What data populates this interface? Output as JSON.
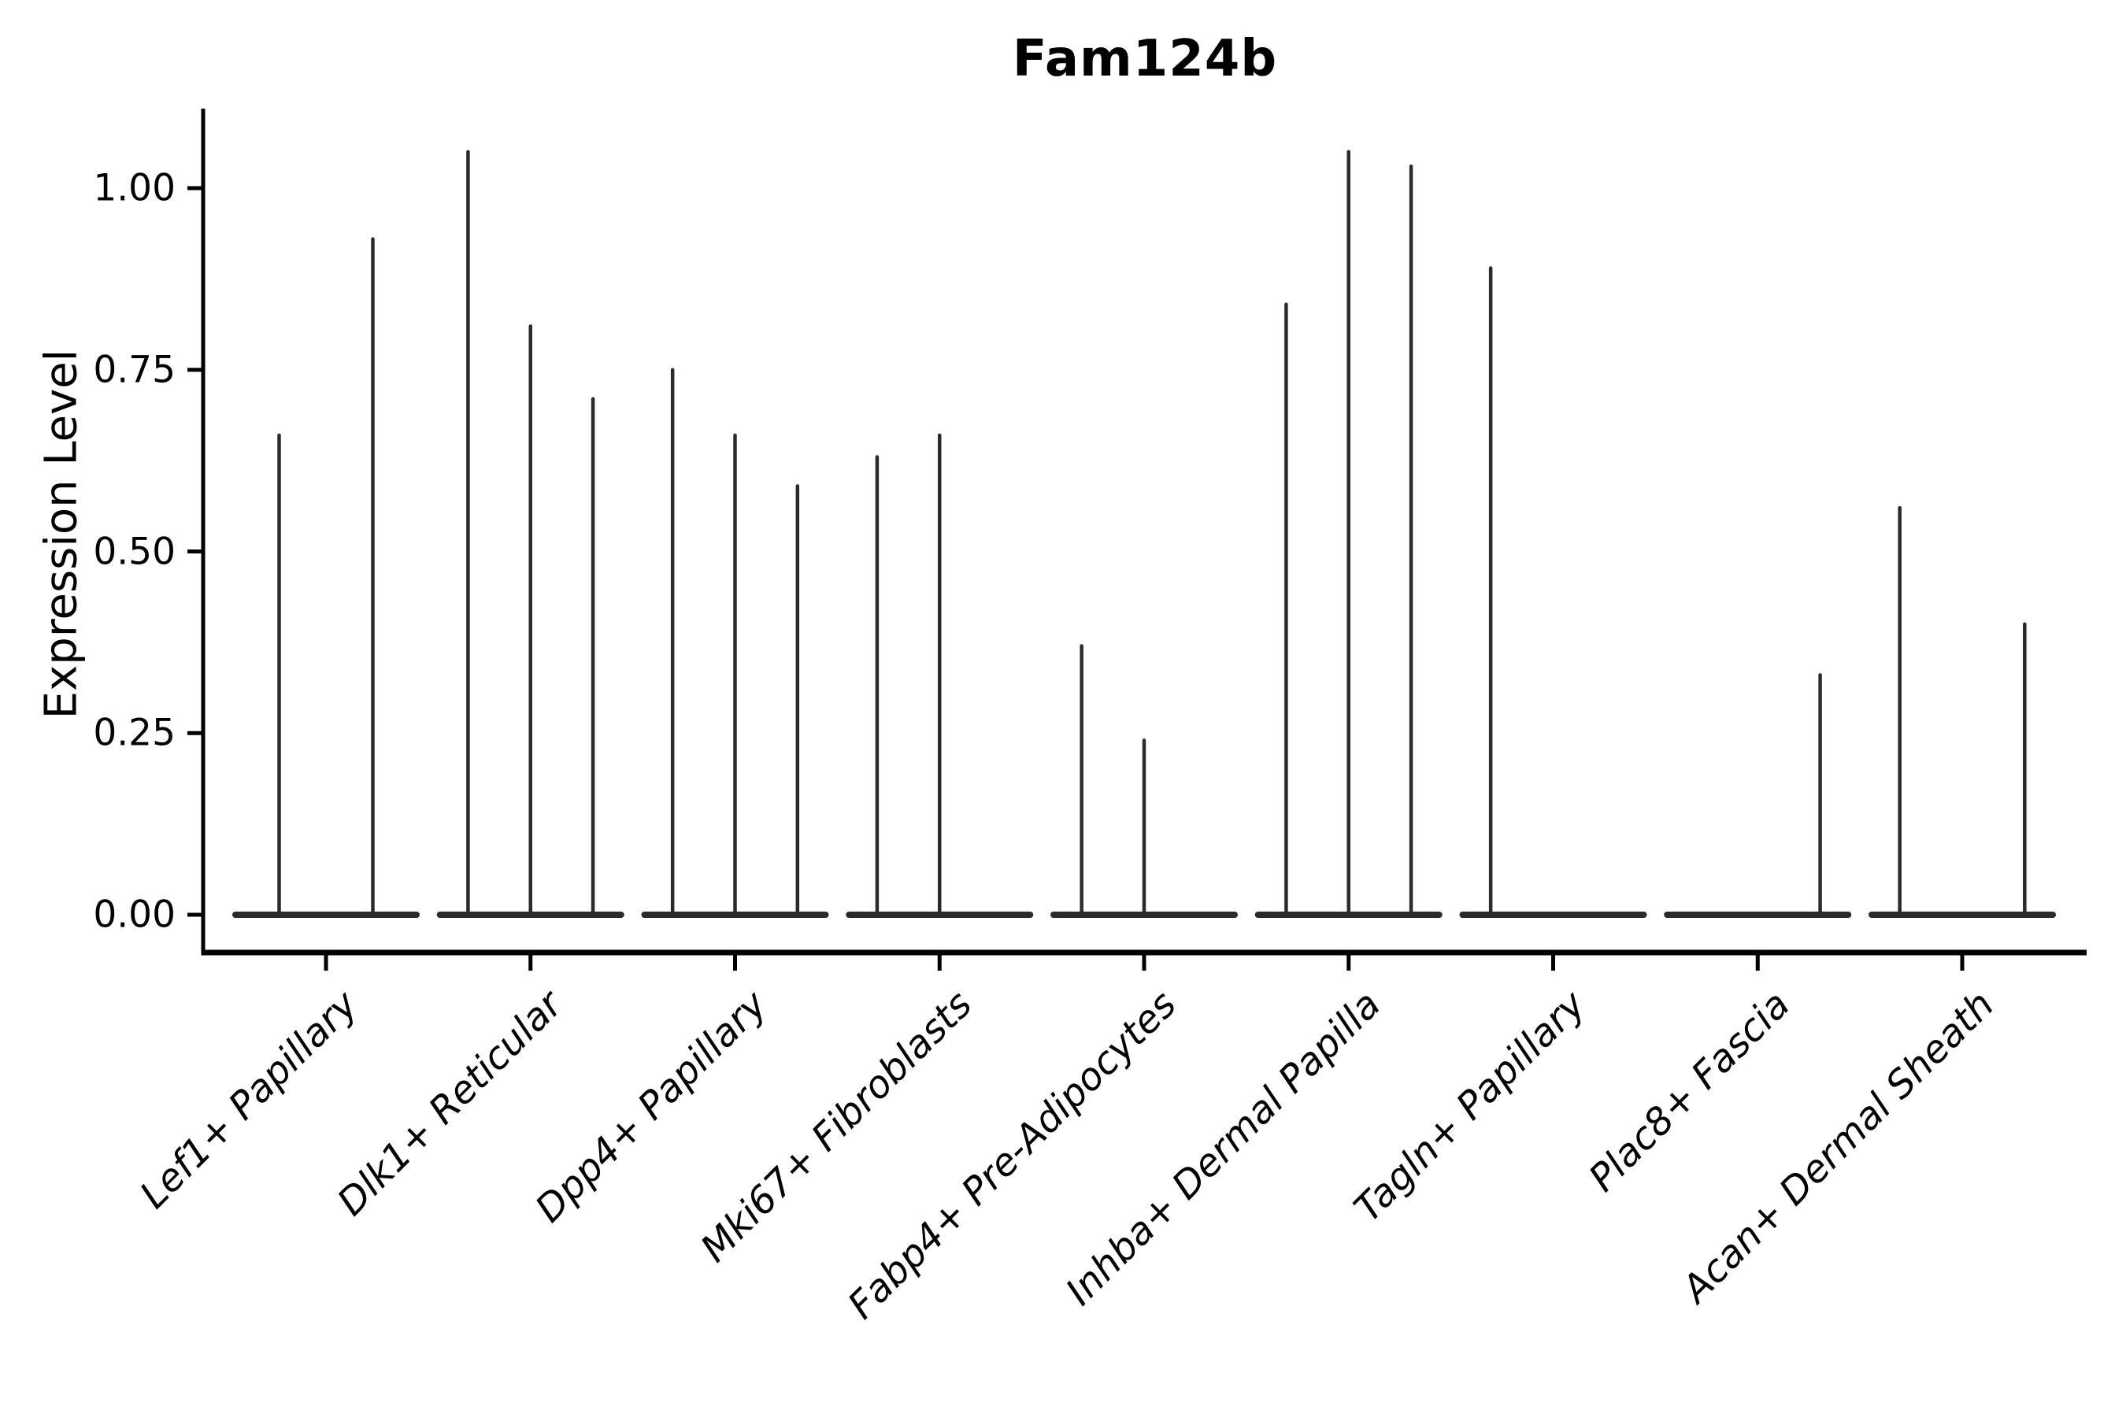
{
  "chart_data": {
    "type": "violin",
    "title": "Fam124b",
    "ylabel": "Expression Level",
    "xlabel": "",
    "grid": false,
    "legend_position": "none",
    "ylim": [
      0,
      1.11
    ],
    "ytick_values": [
      0,
      0.25,
      0.5,
      0.75,
      1.0
    ],
    "ytick_labels": [
      "0.00",
      "0.25",
      "0.50",
      "0.75",
      "1.00"
    ],
    "categories": [
      "Lef1+ Papillary",
      "Dlk1+ Reticular",
      "Dpp4+ Papillary",
      "Mki67+ Fibroblasts",
      "Fabp4+ Pre-Adipocytes",
      "Inhba+ Dermal Papilla",
      "Tagln+ Papillary",
      "Plac8+ Fascia",
      "Acan+ Dermal Sheath"
    ],
    "groups": [
      {
        "category": "Lef1+ Papillary",
        "violin_peaks": [
          0.66,
          0.93
        ]
      },
      {
        "category": "Dlk1+ Reticular",
        "violin_peaks": [
          1.05,
          0.81,
          0.71
        ]
      },
      {
        "category": "Dpp4+ Papillary",
        "violin_peaks": [
          0.75,
          0.66,
          0.59
        ]
      },
      {
        "category": "Mki67+ Fibroblasts",
        "violin_peaks": [
          0.63,
          0.66,
          0.0
        ]
      },
      {
        "category": "Fabp4+ Pre-Adipocytes",
        "violin_peaks": [
          0.37,
          0.24,
          0.0
        ]
      },
      {
        "category": "Inhba+ Dermal Papilla",
        "violin_peaks": [
          0.84,
          1.05,
          1.03
        ]
      },
      {
        "category": "Tagln+ Papillary",
        "violin_peaks": [
          0.89,
          0.0,
          0.0
        ]
      },
      {
        "category": "Plac8+ Fascia",
        "violin_peaks": [
          0.0,
          0.0,
          0.33
        ]
      },
      {
        "category": "Acan+ Dermal Sheath",
        "violin_peaks": [
          0.56,
          0.0,
          0.4
        ]
      }
    ],
    "colors": {
      "violin": "#2b2b2b",
      "axis": "#000000",
      "text": "#000000",
      "background": "#ffffff"
    }
  }
}
